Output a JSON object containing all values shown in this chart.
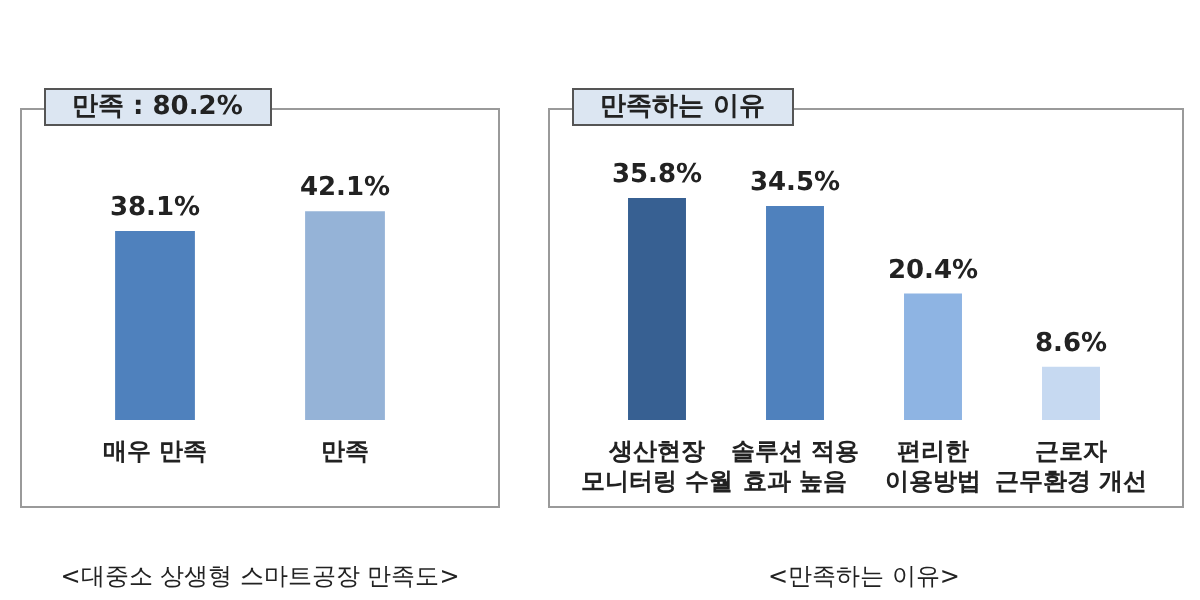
{
  "chart_data": [
    {
      "type": "bar",
      "title": "만족 : 80.2%",
      "categories": [
        "매우 만족",
        "만족"
      ],
      "values": [
        38.1,
        42.1
      ],
      "colors": [
        "#4f81bd",
        "#95b3d7"
      ],
      "value_labels": [
        "38.1%",
        "42.1%"
      ],
      "annotations": [
        "<대중소 상생형 스마트공장 만족도>"
      ]
    },
    {
      "type": "bar",
      "title": "만족하는 이유",
      "categories": [
        "생산현장\n모니터링 수월",
        "솔루션 적용\n효과 높음",
        "편리한\n이용방법",
        "근로자\n근무환경 개선"
      ],
      "values": [
        35.8,
        34.5,
        20.4,
        8.6
      ],
      "colors": [
        "#376092",
        "#4f81bd",
        "#8eb4e3",
        "#c6d9f1"
      ],
      "value_labels": [
        "35.8%",
        "34.5%",
        "20.4%",
        "8.6%"
      ],
      "annotations": [
        "<만족하는 이유>"
      ]
    }
  ]
}
